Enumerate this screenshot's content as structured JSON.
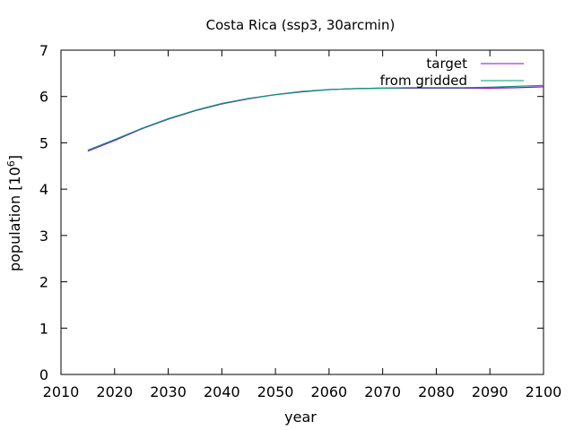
{
  "chart_data": {
    "type": "line",
    "title": "Costa Rica (ssp3, 30arcmin)",
    "xlabel": "year",
    "ylabel_base": "population [10",
    "ylabel_exp": "6",
    "ylabel_close": "]",
    "xlim": [
      2010,
      2100
    ],
    "ylim": [
      0,
      7
    ],
    "xticks": [
      2010,
      2020,
      2030,
      2040,
      2050,
      2060,
      2070,
      2080,
      2090,
      2100
    ],
    "yticks": [
      0,
      1,
      2,
      3,
      4,
      5,
      6,
      7
    ],
    "grid": false,
    "legend_position": "top-right",
    "series": [
      {
        "name": "target",
        "color": "#9400d3",
        "x": [
          2015,
          2020,
          2025,
          2030,
          2035,
          2040,
          2045,
          2050,
          2055,
          2060,
          2065,
          2070,
          2075,
          2080,
          2085,
          2090,
          2095,
          2100
        ],
        "y": [
          4.82,
          5.05,
          5.3,
          5.51,
          5.69,
          5.84,
          5.95,
          6.04,
          6.1,
          6.15,
          6.17,
          6.18,
          6.18,
          6.18,
          6.18,
          6.18,
          6.19,
          6.21
        ]
      },
      {
        "name": "from gridded",
        "color": "#009e73",
        "x": [
          2015,
          2020,
          2025,
          2030,
          2035,
          2040,
          2045,
          2050,
          2055,
          2060,
          2065,
          2070,
          2075,
          2080,
          2085,
          2090,
          2095,
          2100
        ],
        "y": [
          4.84,
          5.07,
          5.31,
          5.52,
          5.7,
          5.85,
          5.96,
          6.04,
          6.11,
          6.15,
          6.17,
          6.18,
          6.19,
          6.19,
          6.19,
          6.2,
          6.22,
          6.24
        ]
      }
    ]
  }
}
